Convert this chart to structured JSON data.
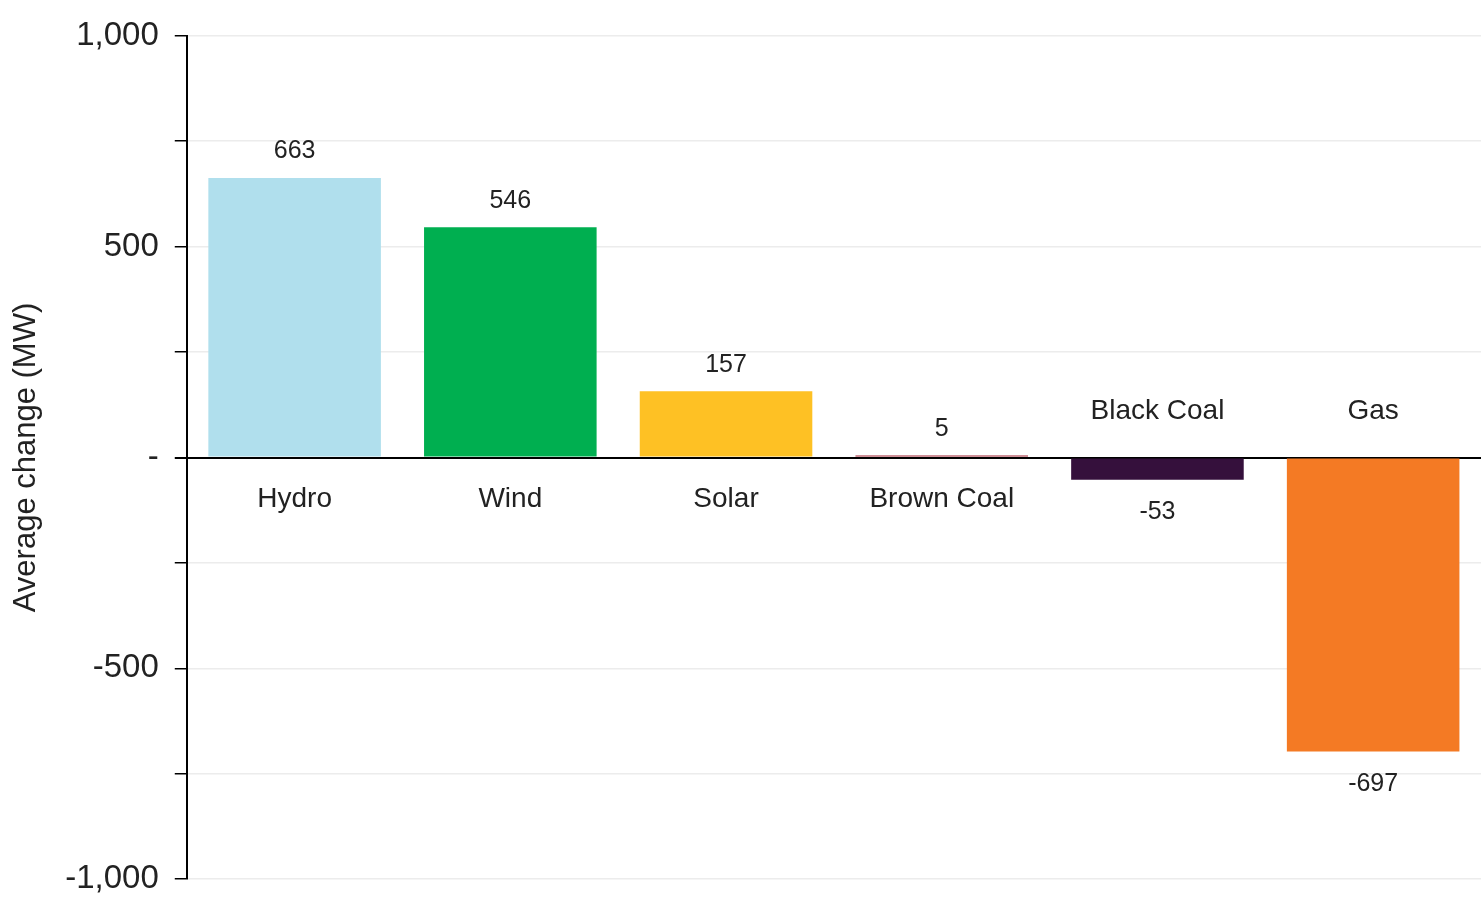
{
  "chart_data": {
    "type": "bar",
    "ylabel": "Average change (MW)",
    "categories": [
      "Hydro",
      "Wind",
      "Solar",
      "Brown Coal",
      "Black Coal",
      "Gas"
    ],
    "values": [
      663,
      546,
      157,
      5,
      -53,
      -697
    ],
    "colors": [
      "#b0dfed",
      "#00af50",
      "#fec124",
      "#a02030",
      "#35103c",
      "#f47a24"
    ],
    "ylim": [
      -1000,
      1000
    ],
    "yticks": [
      {
        "value": -1000,
        "label": "-1,000"
      },
      {
        "value": -750,
        "label": null
      },
      {
        "value": -500,
        "label": "-500"
      },
      {
        "value": -250,
        "label": null
      },
      {
        "value": 0,
        "label": "-"
      },
      {
        "value": 250,
        "label": null
      },
      {
        "value": 500,
        "label": "500"
      },
      {
        "value": 750,
        "label": null
      },
      {
        "value": 1000,
        "label": "1,000"
      }
    ],
    "grid": "y",
    "legend": false,
    "data_labels": true
  }
}
